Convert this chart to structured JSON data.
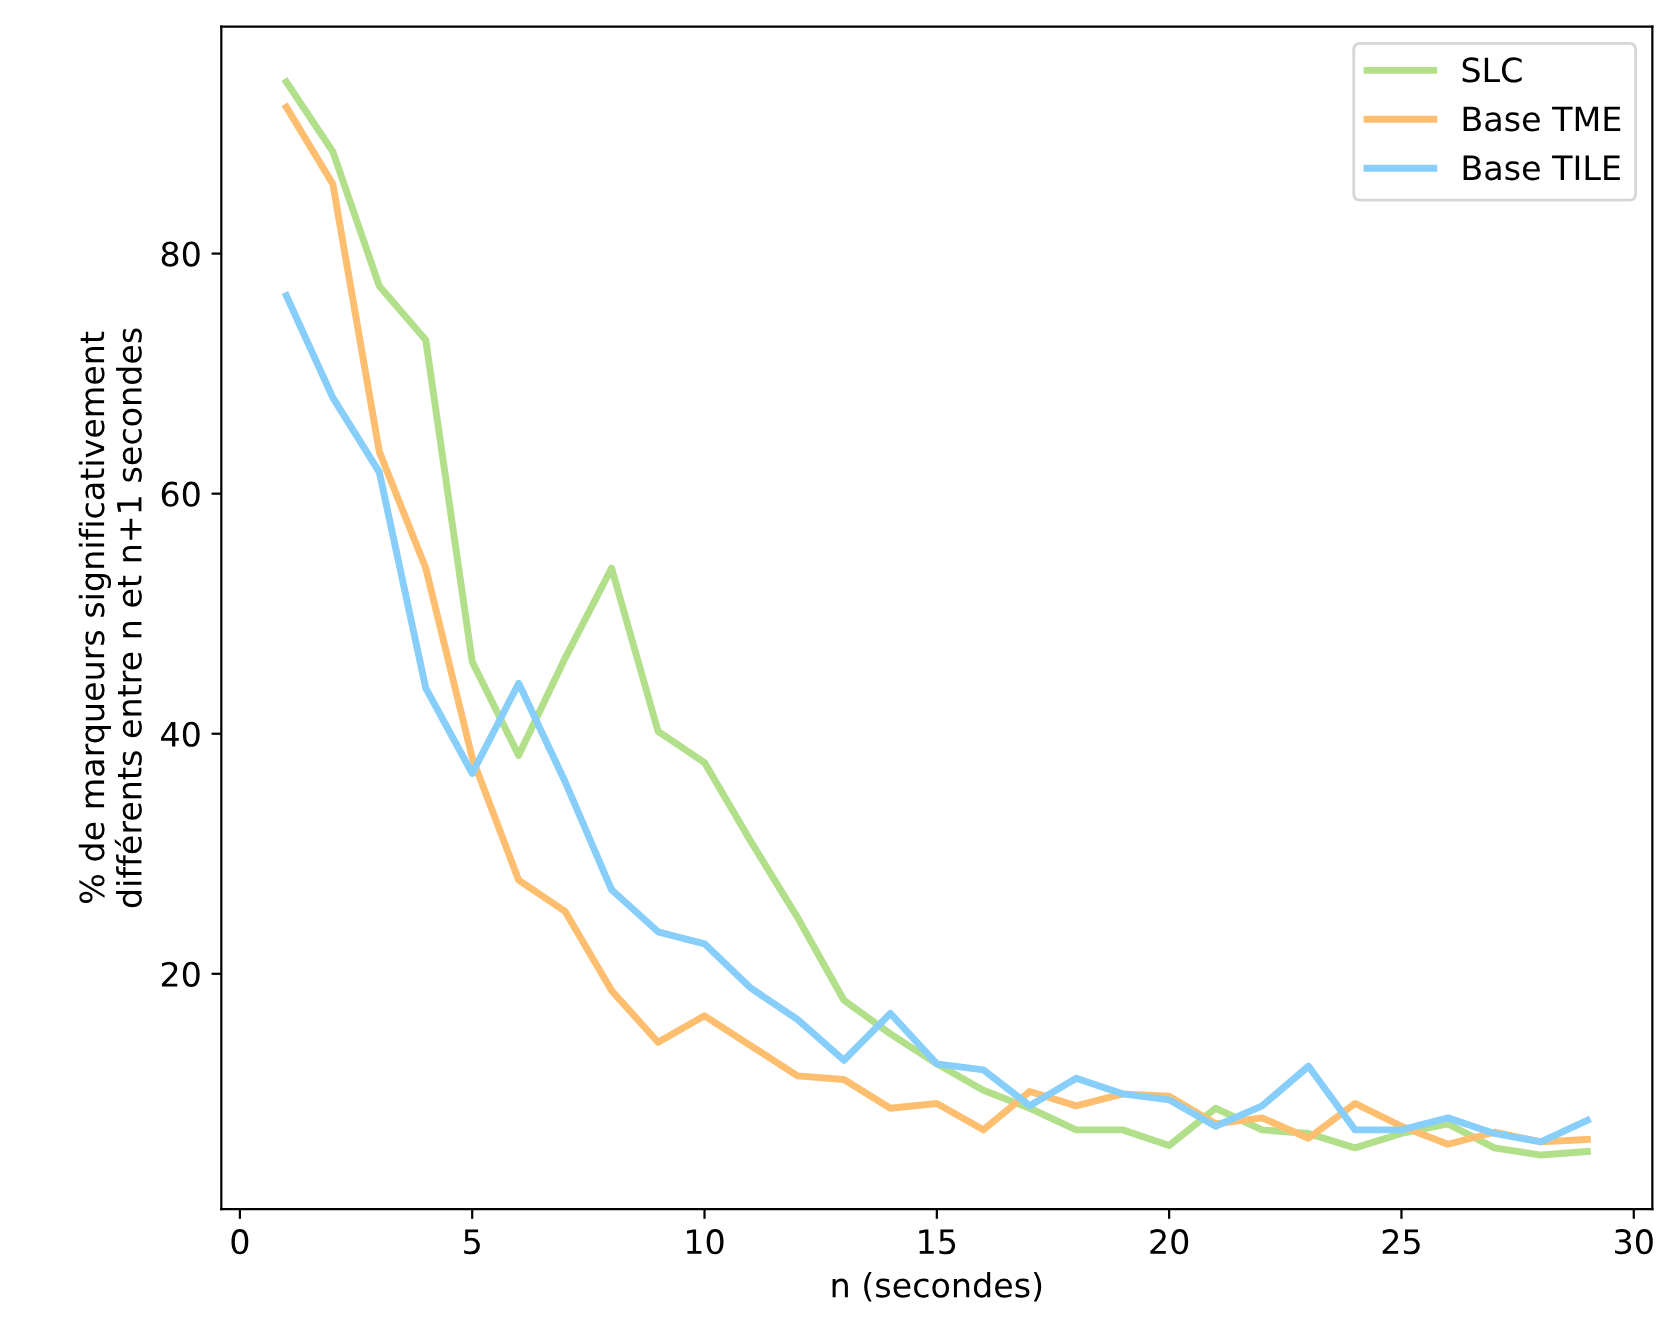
{
  "chart_data": {
    "type": "line",
    "xlabel": "n (secondes)",
    "ylabel": "% de marqueurs significativement\ndifférents entre n et n+1 secondes",
    "x": [
      1,
      2,
      3,
      4,
      5,
      6,
      7,
      8,
      9,
      10,
      11,
      12,
      13,
      14,
      15,
      16,
      17,
      18,
      19,
      20,
      21,
      22,
      23,
      24,
      25,
      26,
      27,
      28,
      29
    ],
    "series": [
      {
        "name": "SLC",
        "color": "#b2df8a",
        "values": [
          94.3,
          88.5,
          77.3,
          72.8,
          46,
          38.2,
          46.3,
          53.8,
          40.2,
          37.6,
          31,
          24.7,
          17.8,
          15,
          12.5,
          10.3,
          8.8,
          7,
          7,
          5.7,
          8.8,
          7,
          6.7,
          5.5,
          6.7,
          7.5,
          5.5,
          4.9,
          5.2
        ]
      },
      {
        "name": "Base TME",
        "color": "#fdbf6f",
        "values": [
          92.2,
          85.8,
          63.5,
          53.8,
          38,
          27.8,
          25.2,
          18.6,
          14.3,
          16.5,
          14,
          11.5,
          11.2,
          8.8,
          9.2,
          7,
          10.2,
          9,
          10,
          9.8,
          7.5,
          8,
          6.3,
          9.2,
          7.3,
          5.8,
          6.8,
          6,
          6.2
        ]
      },
      {
        "name": "Base TILE",
        "color": "#87cefa",
        "values": [
          76.5,
          68,
          61.8,
          43.8,
          36.7,
          44.2,
          36,
          27,
          23.5,
          22.5,
          18.8,
          16.2,
          12.8,
          16.7,
          12.5,
          12,
          9,
          11.3,
          10,
          9.5,
          7.3,
          9,
          12.3,
          7,
          7,
          8,
          6.7,
          6,
          7.8
        ]
      }
    ],
    "xlim": [
      -0.4,
      30.4
    ],
    "ylim": [
      0.4,
      98.9
    ],
    "xticks": [
      0,
      5,
      10,
      15,
      20,
      25,
      30
    ],
    "yticks": [
      20,
      40,
      60,
      80
    ],
    "grid": false,
    "legend": "top right",
    "line_style": "solid",
    "marker": "none"
  }
}
